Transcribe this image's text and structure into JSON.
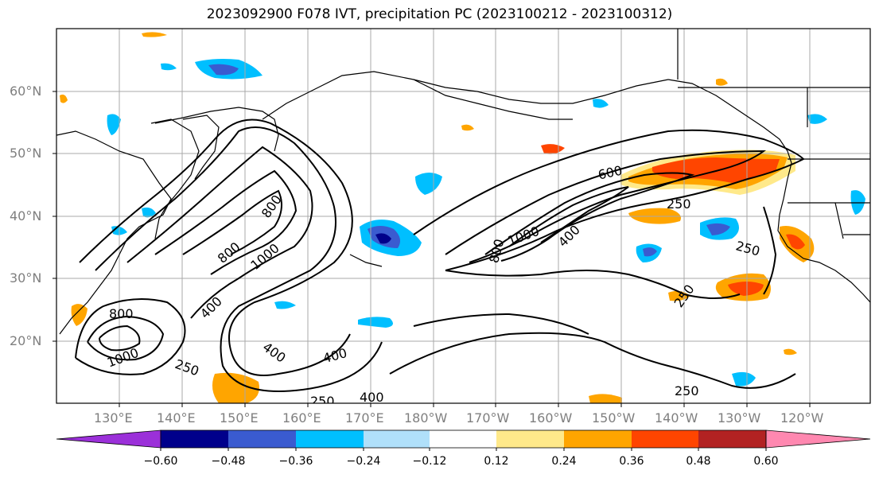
{
  "title": "2023092900 F078 IVT, precipitation PC (2023100212 - 2023100312)",
  "lat_labels": [
    "60°N",
    "50°N",
    "40°N",
    "30°N",
    "20°N"
  ],
  "lon_labels": [
    "130°E",
    "140°E",
    "150°E",
    "160°E",
    "170°E",
    "180°W",
    "170°W",
    "160°W",
    "150°W",
    "140°W",
    "130°W",
    "120°W"
  ],
  "colorbar": {
    "colors": [
      "#9b30d9",
      "#00008b",
      "#3a5bd0",
      "#00bfff",
      "#b0e0fa",
      "#ffffff",
      "#ffe98a",
      "#ffa500",
      "#ff4500",
      "#b22222",
      "#ff88b0"
    ],
    "tick_labels": [
      "−0.60",
      "−0.48",
      "−0.36",
      "−0.24",
      "−0.12",
      "0.12",
      "0.24",
      "0.36",
      "0.48",
      "0.60"
    ]
  },
  "contour_labels": [
    "600",
    "250",
    "400",
    "1000",
    "800",
    "250",
    "250",
    "250",
    "400",
    "800",
    "1000",
    "400",
    "250",
    "400",
    "250",
    "400",
    "800",
    "1000",
    "800",
    "1000",
    "800",
    "800"
  ]
}
